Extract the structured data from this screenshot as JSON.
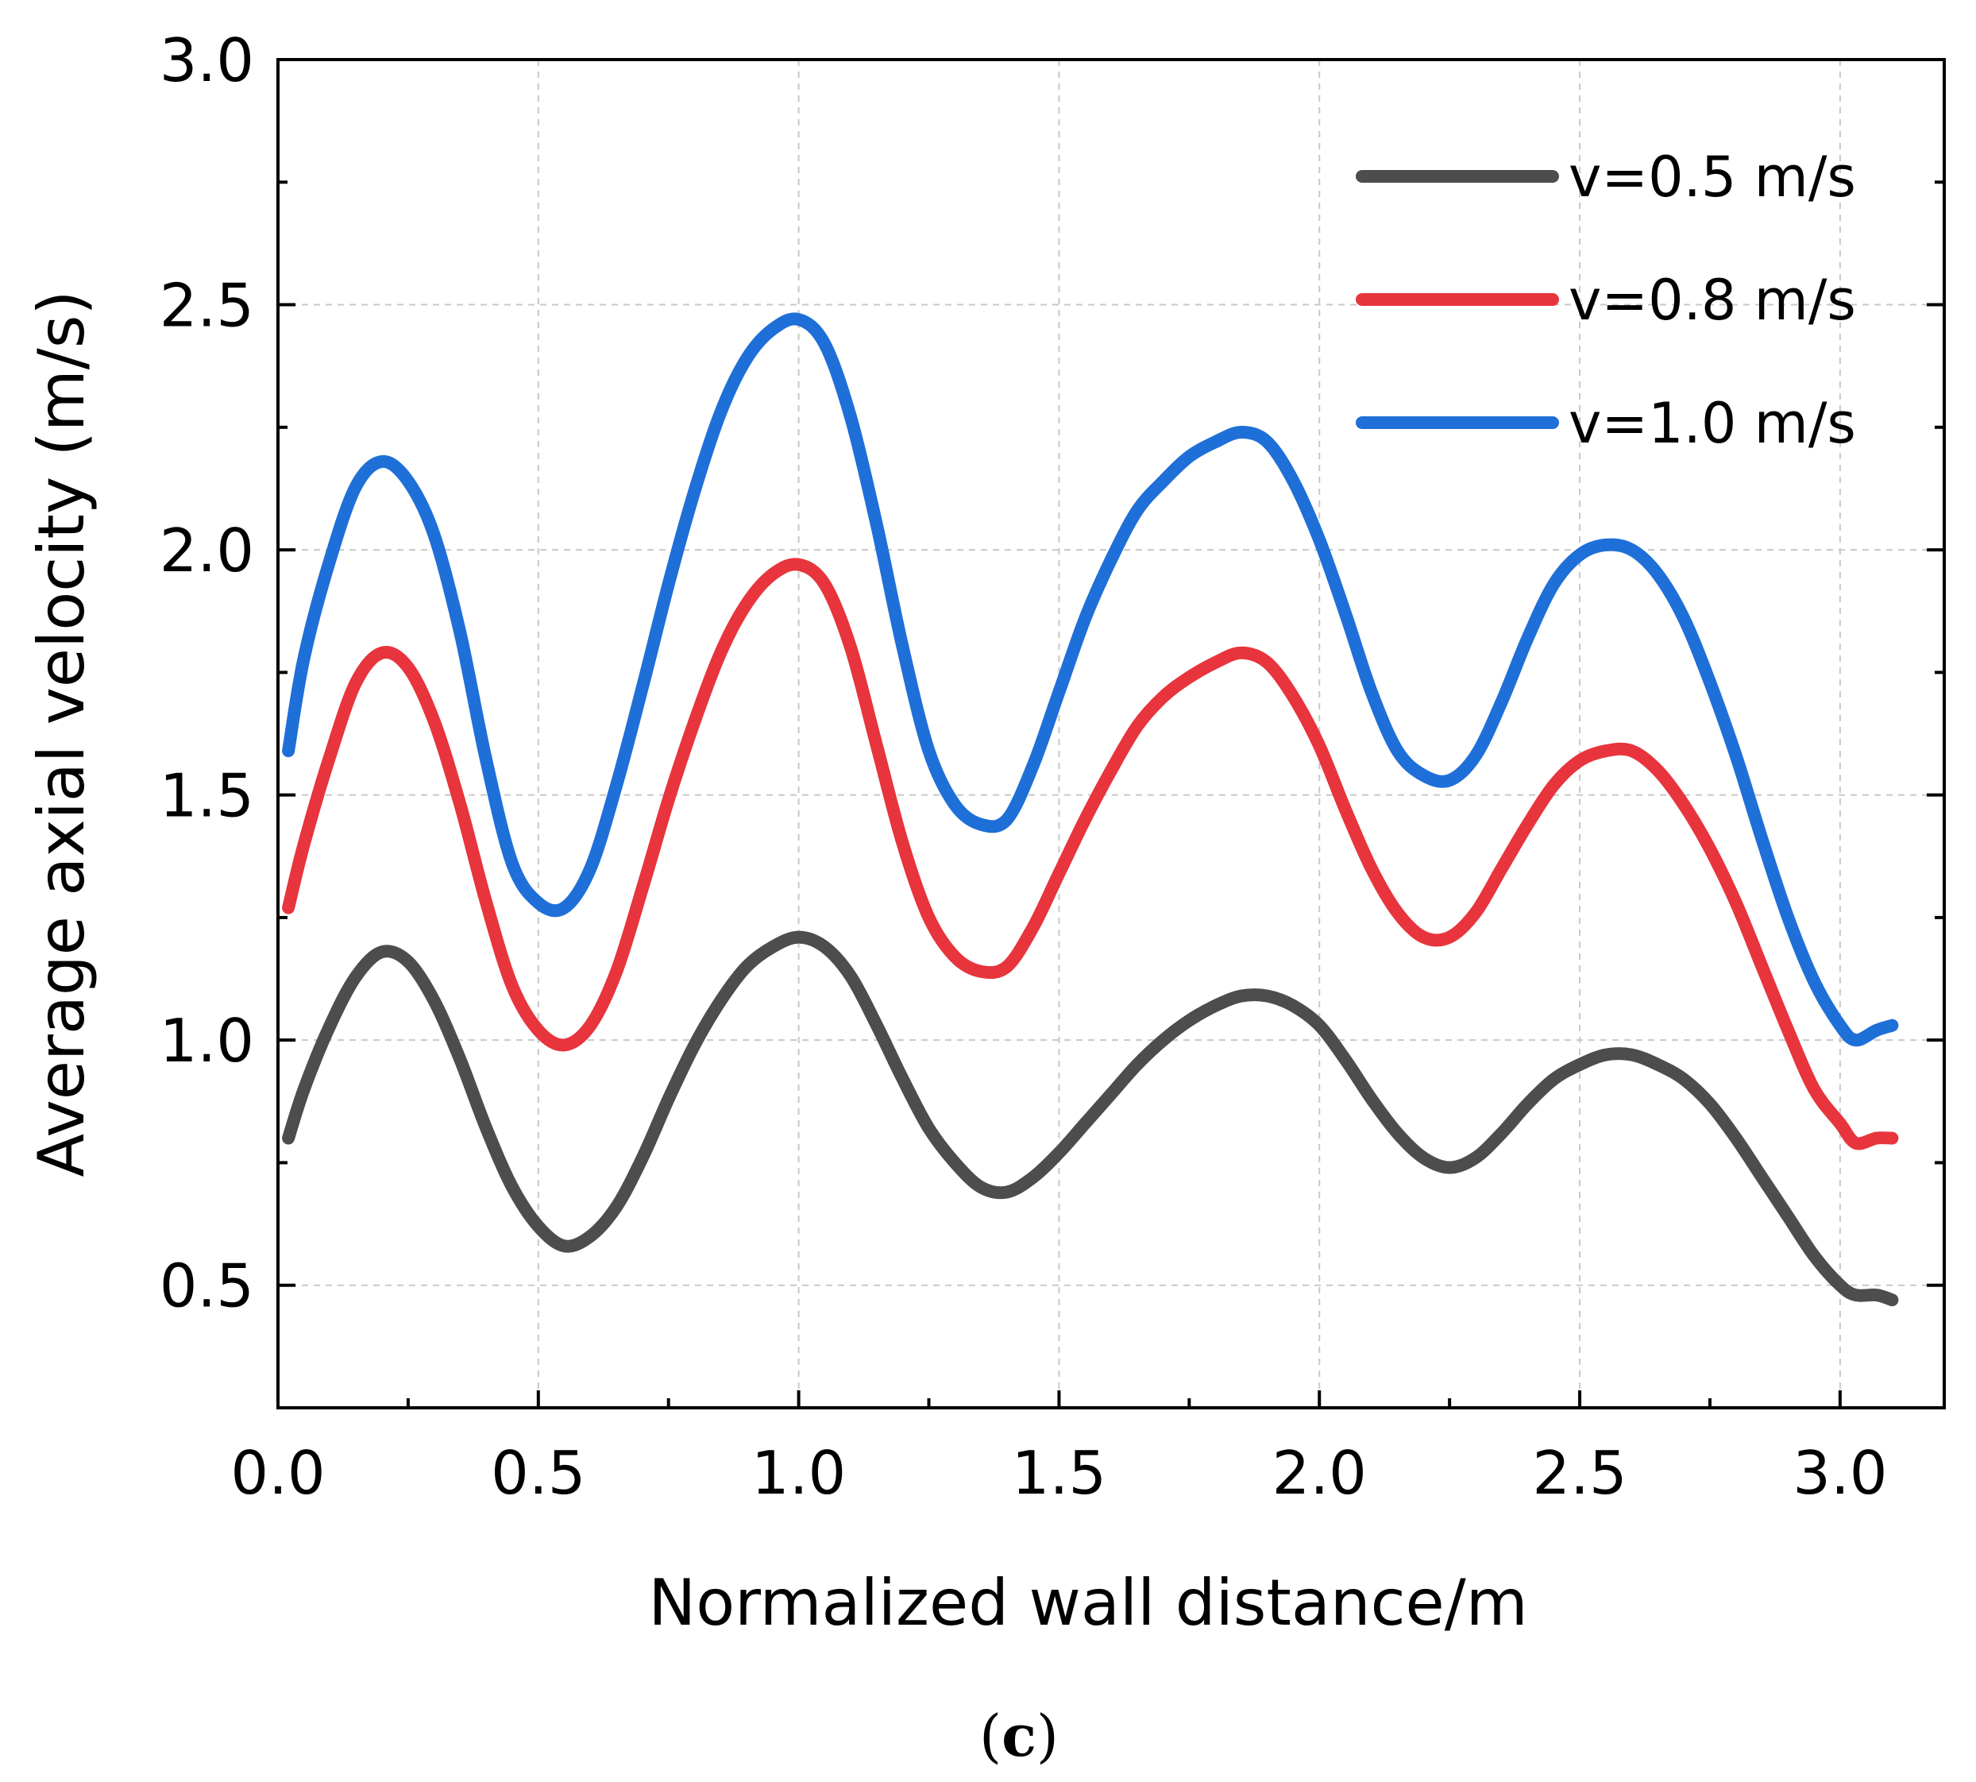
{
  "chart_data": {
    "type": "line",
    "xlabel": "Normalized wall distance/m",
    "ylabel": "Average axial velocity (m/s)",
    "xlim": [
      0.0,
      3.2
    ],
    "ylim": [
      0.25,
      3.0
    ],
    "x_ticks": [
      "0.0",
      "0.5",
      "1.0",
      "1.5",
      "2.0",
      "2.5",
      "3.0"
    ],
    "y_ticks": [
      "0.5",
      "1.0",
      "1.5",
      "2.0",
      "2.5",
      "3.0"
    ],
    "grid": true,
    "legend_position": "top-right",
    "series": [
      {
        "name": "v=0.5 m/s",
        "color": "#4d4d4d",
        "points": [
          [
            0.02,
            0.8
          ],
          [
            0.05,
            0.9
          ],
          [
            0.1,
            1.03
          ],
          [
            0.15,
            1.13
          ],
          [
            0.2,
            1.18
          ],
          [
            0.25,
            1.16
          ],
          [
            0.3,
            1.08
          ],
          [
            0.35,
            0.96
          ],
          [
            0.4,
            0.82
          ],
          [
            0.45,
            0.7
          ],
          [
            0.5,
            0.62
          ],
          [
            0.55,
            0.58
          ],
          [
            0.6,
            0.6
          ],
          [
            0.65,
            0.66
          ],
          [
            0.7,
            0.76
          ],
          [
            0.75,
            0.88
          ],
          [
            0.8,
            0.99
          ],
          [
            0.85,
            1.08
          ],
          [
            0.9,
            1.15
          ],
          [
            0.95,
            1.19
          ],
          [
            1.0,
            1.21
          ],
          [
            1.05,
            1.19
          ],
          [
            1.1,
            1.13
          ],
          [
            1.15,
            1.03
          ],
          [
            1.2,
            0.92
          ],
          [
            1.25,
            0.82
          ],
          [
            1.3,
            0.75
          ],
          [
            1.35,
            0.7
          ],
          [
            1.4,
            0.69
          ],
          [
            1.45,
            0.72
          ],
          [
            1.5,
            0.77
          ],
          [
            1.55,
            0.83
          ],
          [
            1.6,
            0.89
          ],
          [
            1.65,
            0.95
          ],
          [
            1.7,
            1.0
          ],
          [
            1.75,
            1.04
          ],
          [
            1.8,
            1.07
          ],
          [
            1.85,
            1.09
          ],
          [
            1.9,
            1.09
          ],
          [
            1.95,
            1.07
          ],
          [
            2.0,
            1.03
          ],
          [
            2.05,
            0.96
          ],
          [
            2.1,
            0.88
          ],
          [
            2.15,
            0.81
          ],
          [
            2.2,
            0.76
          ],
          [
            2.25,
            0.74
          ],
          [
            2.3,
            0.76
          ],
          [
            2.35,
            0.81
          ],
          [
            2.4,
            0.87
          ],
          [
            2.45,
            0.92
          ],
          [
            2.5,
            0.95
          ],
          [
            2.55,
            0.97
          ],
          [
            2.6,
            0.97
          ],
          [
            2.65,
            0.95
          ],
          [
            2.7,
            0.92
          ],
          [
            2.75,
            0.87
          ],
          [
            2.8,
            0.8
          ],
          [
            2.85,
            0.72
          ],
          [
            2.9,
            0.64
          ],
          [
            2.95,
            0.56
          ],
          [
            3.0,
            0.5
          ],
          [
            3.03,
            0.48
          ],
          [
            3.07,
            0.48
          ],
          [
            3.1,
            0.47
          ]
        ]
      },
      {
        "name": "v=0.8 m/s",
        "color": "#e8343c",
        "points": [
          [
            0.02,
            1.27
          ],
          [
            0.05,
            1.4
          ],
          [
            0.1,
            1.58
          ],
          [
            0.15,
            1.73
          ],
          [
            0.2,
            1.79
          ],
          [
            0.25,
            1.76
          ],
          [
            0.3,
            1.65
          ],
          [
            0.35,
            1.48
          ],
          [
            0.4,
            1.28
          ],
          [
            0.45,
            1.11
          ],
          [
            0.5,
            1.02
          ],
          [
            0.55,
            0.99
          ],
          [
            0.6,
            1.03
          ],
          [
            0.65,
            1.14
          ],
          [
            0.7,
            1.31
          ],
          [
            0.75,
            1.49
          ],
          [
            0.8,
            1.65
          ],
          [
            0.85,
            1.79
          ],
          [
            0.9,
            1.89
          ],
          [
            0.95,
            1.95
          ],
          [
            1.0,
            1.97
          ],
          [
            1.05,
            1.93
          ],
          [
            1.1,
            1.8
          ],
          [
            1.15,
            1.6
          ],
          [
            1.2,
            1.4
          ],
          [
            1.25,
            1.25
          ],
          [
            1.3,
            1.17
          ],
          [
            1.35,
            1.14
          ],
          [
            1.4,
            1.15
          ],
          [
            1.45,
            1.23
          ],
          [
            1.5,
            1.34
          ],
          [
            1.55,
            1.45
          ],
          [
            1.6,
            1.55
          ],
          [
            1.65,
            1.64
          ],
          [
            1.7,
            1.7
          ],
          [
            1.75,
            1.74
          ],
          [
            1.8,
            1.77
          ],
          [
            1.85,
            1.79
          ],
          [
            1.9,
            1.77
          ],
          [
            1.95,
            1.7
          ],
          [
            2.0,
            1.6
          ],
          [
            2.05,
            1.47
          ],
          [
            2.1,
            1.35
          ],
          [
            2.15,
            1.26
          ],
          [
            2.2,
            1.21
          ],
          [
            2.25,
            1.21
          ],
          [
            2.3,
            1.26
          ],
          [
            2.35,
            1.35
          ],
          [
            2.4,
            1.44
          ],
          [
            2.45,
            1.52
          ],
          [
            2.5,
            1.57
          ],
          [
            2.55,
            1.59
          ],
          [
            2.6,
            1.59
          ],
          [
            2.65,
            1.55
          ],
          [
            2.7,
            1.48
          ],
          [
            2.75,
            1.39
          ],
          [
            2.8,
            1.28
          ],
          [
            2.85,
            1.15
          ],
          [
            2.9,
            1.02
          ],
          [
            2.95,
            0.9
          ],
          [
            3.0,
            0.83
          ],
          [
            3.03,
            0.79
          ],
          [
            3.07,
            0.8
          ],
          [
            3.1,
            0.8
          ]
        ]
      },
      {
        "name": "v=1.0 m/s",
        "color": "#1f6fd8",
        "points": [
          [
            0.02,
            1.59
          ],
          [
            0.05,
            1.78
          ],
          [
            0.1,
            1.98
          ],
          [
            0.15,
            2.13
          ],
          [
            0.2,
            2.18
          ],
          [
            0.25,
            2.14
          ],
          [
            0.3,
            2.03
          ],
          [
            0.35,
            1.83
          ],
          [
            0.4,
            1.57
          ],
          [
            0.45,
            1.36
          ],
          [
            0.5,
            1.28
          ],
          [
            0.55,
            1.27
          ],
          [
            0.6,
            1.35
          ],
          [
            0.65,
            1.52
          ],
          [
            0.7,
            1.72
          ],
          [
            0.75,
            1.93
          ],
          [
            0.8,
            2.12
          ],
          [
            0.85,
            2.28
          ],
          [
            0.9,
            2.39
          ],
          [
            0.95,
            2.45
          ],
          [
            1.0,
            2.47
          ],
          [
            1.05,
            2.42
          ],
          [
            1.1,
            2.27
          ],
          [
            1.15,
            2.05
          ],
          [
            1.2,
            1.8
          ],
          [
            1.25,
            1.59
          ],
          [
            1.3,
            1.48
          ],
          [
            1.35,
            1.44
          ],
          [
            1.4,
            1.45
          ],
          [
            1.45,
            1.56
          ],
          [
            1.5,
            1.71
          ],
          [
            1.55,
            1.86
          ],
          [
            1.6,
            1.98
          ],
          [
            1.65,
            2.08
          ],
          [
            1.7,
            2.14
          ],
          [
            1.75,
            2.19
          ],
          [
            1.8,
            2.22
          ],
          [
            1.85,
            2.24
          ],
          [
            1.9,
            2.22
          ],
          [
            1.95,
            2.14
          ],
          [
            2.0,
            2.02
          ],
          [
            2.05,
            1.87
          ],
          [
            2.1,
            1.71
          ],
          [
            2.15,
            1.59
          ],
          [
            2.2,
            1.54
          ],
          [
            2.25,
            1.53
          ],
          [
            2.3,
            1.58
          ],
          [
            2.35,
            1.69
          ],
          [
            2.4,
            1.82
          ],
          [
            2.45,
            1.93
          ],
          [
            2.5,
            1.99
          ],
          [
            2.55,
            2.01
          ],
          [
            2.6,
            2.0
          ],
          [
            2.65,
            1.95
          ],
          [
            2.7,
            1.86
          ],
          [
            2.75,
            1.73
          ],
          [
            2.8,
            1.58
          ],
          [
            2.85,
            1.41
          ],
          [
            2.9,
            1.25
          ],
          [
            2.95,
            1.12
          ],
          [
            3.0,
            1.03
          ],
          [
            3.03,
            1.0
          ],
          [
            3.07,
            1.02
          ],
          [
            3.1,
            1.03
          ]
        ]
      }
    ]
  },
  "caption": {
    "open": "(",
    "letter": "c",
    "close": ")"
  }
}
